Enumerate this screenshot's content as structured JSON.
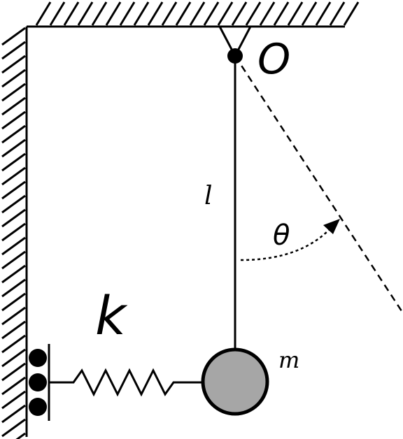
{
  "labels": {
    "pivot": "O",
    "length": "l",
    "angle": "θ",
    "spring_constant": "k",
    "mass": "m"
  },
  "colors": {
    "ink": "#000000",
    "mass_fill": "#a6a6a6",
    "background": "#ffffff"
  }
}
